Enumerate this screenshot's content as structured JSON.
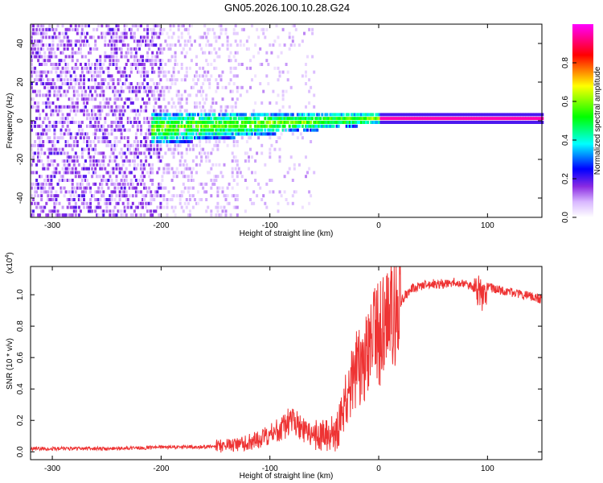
{
  "chart_data": [
    {
      "type": "heatmap",
      "title": "GN05.2026.100.10.28.G24",
      "xlabel": "Height of straight line (km)",
      "ylabel": "Frequency (Hz)",
      "xlim": [
        -320,
        150
      ],
      "ylim": [
        -50,
        50
      ],
      "xticks": [
        -300,
        -200,
        -100,
        0,
        100
      ],
      "yticks": [
        -40,
        -20,
        0,
        20,
        40
      ],
      "colorbar": {
        "label": "Normalized spectral amplitude",
        "range": [
          0,
          1
        ],
        "ticks": [
          "0.0",
          "0.2",
          "0.4",
          "0.6",
          "0.8"
        ],
        "tick_values": [
          0,
          0.2,
          0.4,
          0.6,
          0.8
        ],
        "colormap": [
          "#ffffff",
          "#d9b8ff",
          "#8a2be2",
          "#0000ff",
          "#00ffff",
          "#00ff00",
          "#ffff00",
          "#ff0000",
          "#ff00ff"
        ]
      },
      "features": [
        {
          "name": "scattered noise",
          "x_range": [
            -320,
            -60
          ],
          "frequency_range": [
            -50,
            50
          ],
          "amplitude": "low"
        },
        {
          "name": "frequency trace",
          "x_range": [
            -210,
            0
          ],
          "frequency_center": [
            -5,
            0
          ],
          "amplitude": "0.2-0.6"
        },
        {
          "name": "steady tone",
          "x_range": [
            0,
            150
          ],
          "frequency": 0,
          "amplitude": 1.0
        }
      ]
    },
    {
      "type": "line",
      "title": "",
      "xlabel": "Height of straight line (km)",
      "ylabel": "SNR (10 * v/v)",
      "scale_label": "(x10",
      "scale_exponent": "4",
      "xlim": [
        -320,
        150
      ],
      "ylim": [
        -0.05,
        1.18
      ],
      "xticks": [
        -300,
        -200,
        -100,
        0,
        100
      ],
      "yticks": [
        0.0,
        0.2,
        0.4,
        0.6,
        0.8,
        1.0
      ],
      "series": [
        {
          "name": "SNR",
          "color": "#ee3333",
          "x": [
            -320,
            -280,
            -240,
            -200,
            -160,
            -140,
            -120,
            -110,
            -100,
            -90,
            -80,
            -70,
            -60,
            -50,
            -40,
            -35,
            -30,
            -25,
            -20,
            -15,
            -10,
            -5,
            0,
            5,
            10,
            15,
            20,
            25,
            30,
            40,
            50,
            60,
            70,
            80,
            90,
            95,
            100,
            110,
            120,
            130,
            140,
            150
          ],
          "values": [
            0.02,
            0.02,
            0.02,
            0.03,
            0.03,
            0.04,
            0.06,
            0.08,
            0.11,
            0.15,
            0.2,
            0.14,
            0.1,
            0.09,
            0.12,
            0.2,
            0.35,
            0.45,
            0.52,
            0.6,
            0.65,
            0.7,
            0.75,
            0.8,
            0.86,
            0.9,
            0.95,
            1.0,
            1.04,
            1.06,
            1.07,
            1.07,
            1.08,
            1.07,
            1.04,
            0.98,
            1.05,
            1.03,
            1.02,
            1.0,
            0.99,
            0.97
          ]
        }
      ]
    }
  ]
}
